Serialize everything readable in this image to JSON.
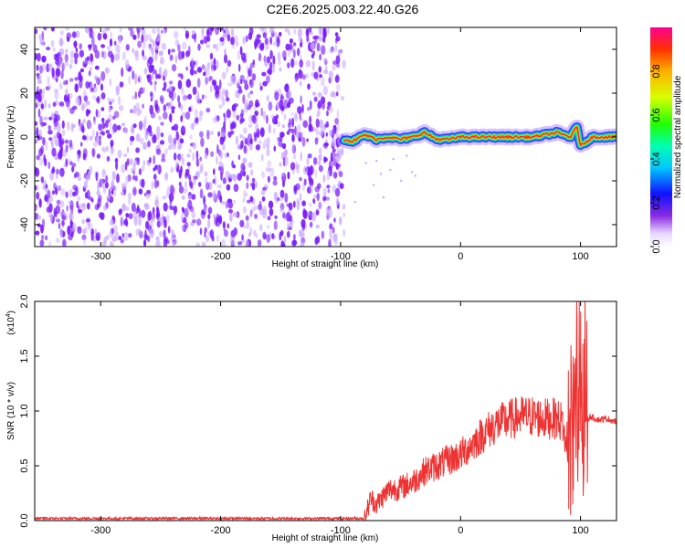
{
  "title": "C2E6.2025.003.22.40.G26",
  "colors": {
    "snr_line": "#ee3333",
    "spectrogram_noise": "#7a1aff",
    "spectrogram_noise_light": "#c9a6ff",
    "axis": "#000000"
  },
  "chart_data": [
    {
      "type": "heatmap",
      "title": "C2E6.2025.003.22.40.G26",
      "xlabel": "Height of straight line (km)",
      "ylabel": "Frequency (Hz)",
      "xlim": [
        -355,
        130
      ],
      "ylim": [
        -50,
        50
      ],
      "x_ticks": [
        -300,
        -200,
        -100,
        0,
        100
      ],
      "y_ticks": [
        -40,
        -20,
        0,
        20,
        40
      ],
      "colorbar": {
        "label": "Normalized spectral amplitude",
        "range": [
          0.0,
          1.0
        ],
        "ticks": [
          "0.0",
          "0.2",
          "0.4",
          "0.6",
          "0.8"
        ],
        "tick_values": [
          0.0,
          0.2,
          0.4,
          0.6,
          0.8
        ]
      },
      "regions": [
        {
          "name": "noise",
          "x_range": [
            -355,
            -97
          ],
          "freq_range": [
            -50,
            50
          ],
          "amplitude": 0.1
        },
        {
          "name": "signal",
          "x_range": [
            -97,
            130
          ],
          "amplitude_peak": 1.0
        }
      ],
      "signal_center": [
        {
          "x": -97,
          "freq": -1
        },
        {
          "x": -90,
          "freq": -2
        },
        {
          "x": -80,
          "freq": 1
        },
        {
          "x": -70,
          "freq": -1
        },
        {
          "x": -60,
          "freq": 0
        },
        {
          "x": -50,
          "freq": -1
        },
        {
          "x": -40,
          "freq": 0
        },
        {
          "x": -30,
          "freq": 2
        },
        {
          "x": -20,
          "freq": -1
        },
        {
          "x": -10,
          "freq": -1
        },
        {
          "x": 0,
          "freq": 0
        },
        {
          "x": 20,
          "freq": 0
        },
        {
          "x": 40,
          "freq": 0
        },
        {
          "x": 60,
          "freq": 0
        },
        {
          "x": 80,
          "freq": 2
        },
        {
          "x": 92,
          "freq": 0
        },
        {
          "x": 97,
          "freq": 5
        },
        {
          "x": 100,
          "freq": -4
        },
        {
          "x": 110,
          "freq": 0
        },
        {
          "x": 130,
          "freq": 0
        }
      ]
    },
    {
      "type": "line",
      "xlabel": "Height of straight line (km)",
      "ylabel": "SNR (10 * v/v)",
      "y_multiplier_label": "(x10",
      "y_multiplier_exp": "4",
      "xlim": [
        -355,
        130
      ],
      "ylim": [
        0,
        2.0
      ],
      "x_ticks": [
        -300,
        -200,
        -100,
        0,
        100
      ],
      "y_ticks": [
        "0.0",
        "0.5",
        "1.0",
        "1.5",
        "2.0"
      ],
      "y_tick_values": [
        0.0,
        0.5,
        1.0,
        1.5,
        2.0
      ],
      "series": [
        {
          "x": [
            -355,
            -300,
            -200,
            -120,
            -80,
            -75,
            -70,
            -60,
            -50,
            -40,
            -30,
            -20,
            -10,
            0,
            10,
            20,
            30,
            40,
            50,
            60,
            70,
            80,
            85,
            90,
            92,
            94,
            96,
            98,
            100,
            102,
            104,
            108,
            115,
            122,
            130
          ],
          "y": [
            0.02,
            0.02,
            0.02,
            0.02,
            0.02,
            0.2,
            0.15,
            0.28,
            0.3,
            0.35,
            0.45,
            0.5,
            0.55,
            0.6,
            0.7,
            0.8,
            0.88,
            0.92,
            0.95,
            0.95,
            0.93,
            0.93,
            0.9,
            0.5,
            1.6,
            0.2,
            1.8,
            0.1,
            2.0,
            0.15,
            0.9,
            0.95,
            0.92,
            0.93,
            0.9
          ]
        }
      ]
    }
  ]
}
